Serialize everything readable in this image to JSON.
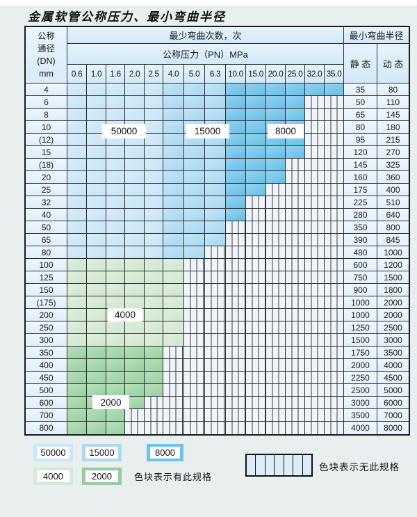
{
  "title": "金属软管公称压力、最小弯曲半径",
  "table": {
    "corner_header": [
      "公称",
      "通径",
      "(DN)",
      "mm"
    ],
    "bend_cycles_header": "最少弯曲次数，次",
    "pressure_header": "公称压力（PN）MPa",
    "pressure_columns": [
      "0.6",
      "1.0",
      "1.6",
      "2.0",
      "2.5",
      "4.0",
      "5.0",
      "6.3",
      "10.0",
      "15.0",
      "20.0",
      "25.0",
      "32.0",
      "35.0"
    ],
    "radius_header": "最小弯曲半径",
    "static_header": "静 态",
    "dynamic_header": "动 态",
    "rows": [
      {
        "dn": "4",
        "through": "35.0",
        "static": "35",
        "dynamic": "80",
        "group": "blue"
      },
      {
        "dn": "6",
        "through": "25.0",
        "static": "50",
        "dynamic": "110",
        "group": "blue"
      },
      {
        "dn": "8",
        "through": "25.0",
        "static": "65",
        "dynamic": "145",
        "group": "blue"
      },
      {
        "dn": "10",
        "through": "25.0",
        "static": "80",
        "dynamic": "180",
        "group": "blue"
      },
      {
        "dn": "(12)",
        "through": "25.0",
        "static": "95",
        "dynamic": "215",
        "group": "blue"
      },
      {
        "dn": "15",
        "through": "25.0",
        "static": "120",
        "dynamic": "270",
        "group": "blue"
      },
      {
        "dn": "(18)",
        "through": "20.0",
        "static": "145",
        "dynamic": "325",
        "group": "blue"
      },
      {
        "dn": "20",
        "through": "20.0",
        "static": "160",
        "dynamic": "360",
        "group": "blue"
      },
      {
        "dn": "25",
        "through": "15.0",
        "static": "175",
        "dynamic": "400",
        "group": "blue"
      },
      {
        "dn": "32",
        "through": "10.0",
        "static": "225",
        "dynamic": "510",
        "group": "blue"
      },
      {
        "dn": "40",
        "through": "10.0",
        "static": "280",
        "dynamic": "640",
        "group": "blue"
      },
      {
        "dn": "50",
        "through": "6.3",
        "static": "350",
        "dynamic": "800",
        "group": "blue"
      },
      {
        "dn": "65",
        "through": "6.3",
        "static": "390",
        "dynamic": "845",
        "group": "blue"
      },
      {
        "dn": "80",
        "through": "5.0",
        "static": "480",
        "dynamic": "1000",
        "group": "blue"
      },
      {
        "dn": "100",
        "through": "4.0",
        "static": "600",
        "dynamic": "1200",
        "group": "4000"
      },
      {
        "dn": "125",
        "through": "4.0",
        "static": "750",
        "dynamic": "1500",
        "group": "4000"
      },
      {
        "dn": "150",
        "through": "4.0",
        "static": "900",
        "dynamic": "1800",
        "group": "4000"
      },
      {
        "dn": "(175)",
        "through": "4.0",
        "static": "1000",
        "dynamic": "2000",
        "group": "4000"
      },
      {
        "dn": "200",
        "through": "4.0",
        "static": "1000",
        "dynamic": "2000",
        "group": "4000"
      },
      {
        "dn": "250",
        "through": "4.0",
        "static": "1250",
        "dynamic": "2500",
        "group": "4000"
      },
      {
        "dn": "300",
        "through": "4.0",
        "static": "1500",
        "dynamic": "3000",
        "group": "4000"
      },
      {
        "dn": "350",
        "through": "2.5",
        "static": "1750",
        "dynamic": "3500",
        "group": "2000"
      },
      {
        "dn": "400",
        "through": "2.5",
        "static": "2000",
        "dynamic": "4000",
        "group": "2000"
      },
      {
        "dn": "450",
        "through": "2.5",
        "static": "2250",
        "dynamic": "4500",
        "group": "2000"
      },
      {
        "dn": "500",
        "through": "2.5",
        "static": "2500",
        "dynamic": "5000",
        "group": "2000"
      },
      {
        "dn": "600",
        "through": "2.0",
        "static": "3000",
        "dynamic": "6000",
        "group": "2000"
      },
      {
        "dn": "700",
        "through": "1.6",
        "static": "3500",
        "dynamic": "7000",
        "group": "2000"
      },
      {
        "dn": "800",
        "through": "1.6",
        "static": "4000",
        "dynamic": "8000",
        "group": "2000"
      }
    ]
  },
  "zones": {
    "blue_by_column": [
      {
        "cycles": "50000",
        "through": "2.5"
      },
      {
        "cycles": "15000",
        "through": "6.3"
      },
      {
        "cycles": "8000",
        "through": "35.0"
      }
    ],
    "green_by_row": [
      {
        "cycles": "4000",
        "rows": "100–300"
      },
      {
        "cycles": "2000",
        "rows": "350–800"
      }
    ]
  },
  "cycle_labels": {
    "b50000": "50000",
    "b15000": "15000",
    "b8000": "8000",
    "g4000": "4000",
    "g2000": "2000"
  },
  "colors": {
    "z50000": "#c9e7f8",
    "z15000": "#a9d9f3",
    "z8000": "#6ec3ec",
    "z4000": "#d5e9d3",
    "z2000": "#93cf9c",
    "nospec_bg": "#eef4fa"
  },
  "legend": {
    "swatches_row1": [
      {
        "label": "50000",
        "zone": "z50000"
      },
      {
        "label": "15000",
        "zone": "z15000"
      },
      {
        "label": "8000",
        "zone": "z8000"
      }
    ],
    "swatches_row2": [
      {
        "label": "4000",
        "zone": "z4000"
      },
      {
        "label": "2000",
        "zone": "z2000"
      }
    ],
    "has_spec_text": "色块表示有此规格",
    "no_spec_text": "色块表示无此规格"
  }
}
